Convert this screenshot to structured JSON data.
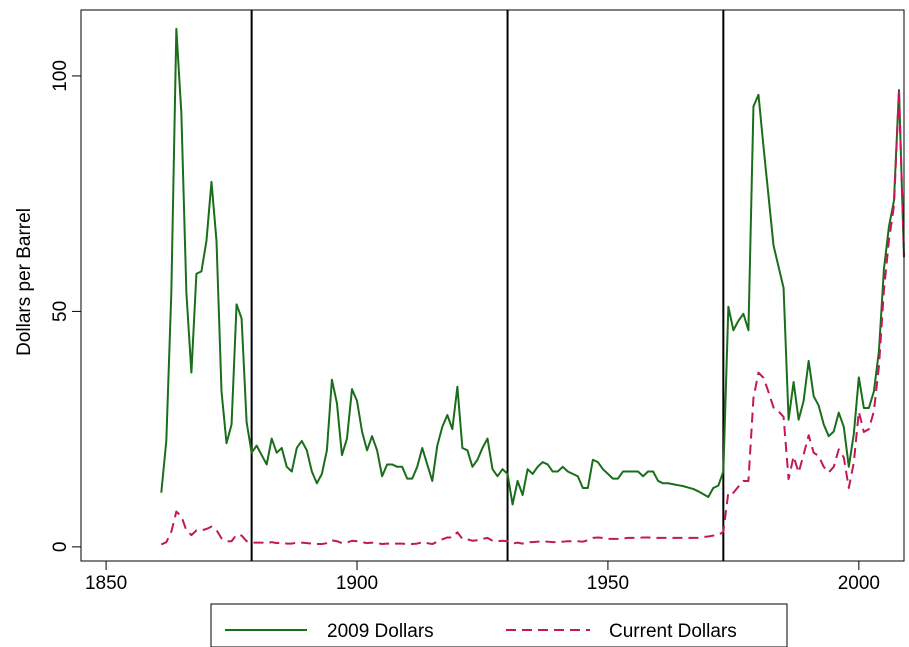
{
  "chart_data": {
    "type": "line",
    "title": "",
    "xlabel": "",
    "ylabel": "Dollars per Barrel",
    "xlim": [
      1845,
      2009
    ],
    "ylim": [
      -3,
      114
    ],
    "xticks": [
      1850,
      1900,
      1950,
      2000
    ],
    "yticks": [
      0,
      50,
      100
    ],
    "grid": false,
    "legend_position": "bottom",
    "vertical_lines": [
      1879,
      1930,
      1973
    ],
    "series": [
      {
        "name": "2009 Dollars",
        "color": "#1a6e1a",
        "dash": "solid",
        "points": [
          [
            1861,
            11.5
          ],
          [
            1862,
            22.5
          ],
          [
            1863,
            54
          ],
          [
            1864,
            110
          ],
          [
            1865,
            92
          ],
          [
            1866,
            54
          ],
          [
            1867,
            37
          ],
          [
            1868,
            58
          ],
          [
            1869,
            58.5
          ],
          [
            1870,
            65
          ],
          [
            1871,
            77.5
          ],
          [
            1872,
            65
          ],
          [
            1873,
            33
          ],
          [
            1874,
            22
          ],
          [
            1875,
            26
          ],
          [
            1876,
            51.5
          ],
          [
            1877,
            48.5
          ],
          [
            1878,
            26.5
          ],
          [
            1879,
            20
          ],
          [
            1880,
            21.5
          ],
          [
            1881,
            19.5
          ],
          [
            1882,
            17.5
          ],
          [
            1883,
            23
          ],
          [
            1884,
            20
          ],
          [
            1885,
            21
          ],
          [
            1886,
            17
          ],
          [
            1887,
            16
          ],
          [
            1888,
            21
          ],
          [
            1889,
            22.5
          ],
          [
            1890,
            20.5
          ],
          [
            1891,
            16
          ],
          [
            1892,
            13.5
          ],
          [
            1893,
            15.5
          ],
          [
            1894,
            20.5
          ],
          [
            1895,
            35.5
          ],
          [
            1896,
            30.5
          ],
          [
            1897,
            19.5
          ],
          [
            1898,
            23
          ],
          [
            1899,
            33.5
          ],
          [
            1900,
            31
          ],
          [
            1901,
            24.5
          ],
          [
            1902,
            20.5
          ],
          [
            1903,
            23.5
          ],
          [
            1904,
            20.5
          ],
          [
            1905,
            15
          ],
          [
            1906,
            17.5
          ],
          [
            1907,
            17.5
          ],
          [
            1908,
            17
          ],
          [
            1909,
            17
          ],
          [
            1910,
            14.5
          ],
          [
            1911,
            14.5
          ],
          [
            1912,
            17
          ],
          [
            1913,
            21
          ],
          [
            1914,
            17.5
          ],
          [
            1915,
            14
          ],
          [
            1916,
            21.5
          ],
          [
            1917,
            25.5
          ],
          [
            1918,
            28
          ],
          [
            1919,
            25
          ],
          [
            1920,
            34
          ],
          [
            1921,
            21
          ],
          [
            1922,
            20.5
          ],
          [
            1923,
            17
          ],
          [
            1924,
            18.5
          ],
          [
            1925,
            21
          ],
          [
            1926,
            23
          ],
          [
            1927,
            16.5
          ],
          [
            1928,
            15
          ],
          [
            1929,
            16.5
          ],
          [
            1930,
            15.5
          ],
          [
            1931,
            9
          ],
          [
            1932,
            14
          ],
          [
            1933,
            11
          ],
          [
            1934,
            16.5
          ],
          [
            1935,
            15.5
          ],
          [
            1936,
            17
          ],
          [
            1937,
            18
          ],
          [
            1938,
            17.5
          ],
          [
            1939,
            16
          ],
          [
            1940,
            16
          ],
          [
            1941,
            17
          ],
          [
            1942,
            16
          ],
          [
            1943,
            15.5
          ],
          [
            1944,
            15
          ],
          [
            1945,
            12.5
          ],
          [
            1946,
            12.5
          ],
          [
            1947,
            18.5
          ],
          [
            1948,
            18
          ],
          [
            1949,
            16.5
          ],
          [
            1950,
            15.5
          ],
          [
            1951,
            14.5
          ],
          [
            1952,
            14.5
          ],
          [
            1953,
            16
          ],
          [
            1954,
            16
          ],
          [
            1955,
            16
          ],
          [
            1956,
            16
          ],
          [
            1957,
            15
          ],
          [
            1958,
            16
          ],
          [
            1959,
            16
          ],
          [
            1960,
            14
          ],
          [
            1961,
            13.5
          ],
          [
            1962,
            13.5
          ],
          [
            1963,
            13.3
          ],
          [
            1964,
            13.1
          ],
          [
            1965,
            12.9
          ],
          [
            1966,
            12.6
          ],
          [
            1967,
            12.3
          ],
          [
            1968,
            11.8
          ],
          [
            1969,
            11.2
          ],
          [
            1970,
            10.6
          ],
          [
            1971,
            12.5
          ],
          [
            1972,
            13
          ],
          [
            1973,
            16
          ],
          [
            1974,
            51
          ],
          [
            1975,
            46
          ],
          [
            1976,
            48
          ],
          [
            1977,
            49.5
          ],
          [
            1978,
            46
          ],
          [
            1979,
            93.5
          ],
          [
            1980,
            96
          ],
          [
            1981,
            85
          ],
          [
            1982,
            74.5
          ],
          [
            1983,
            64
          ],
          [
            1984,
            59.5
          ],
          [
            1985,
            55
          ],
          [
            1986,
            27
          ],
          [
            1987,
            35
          ],
          [
            1988,
            27
          ],
          [
            1989,
            31
          ],
          [
            1990,
            39.5
          ],
          [
            1991,
            32
          ],
          [
            1992,
            30
          ],
          [
            1993,
            26
          ],
          [
            1994,
            23.5
          ],
          [
            1995,
            24.5
          ],
          [
            1996,
            28.5
          ],
          [
            1997,
            25.5
          ],
          [
            1998,
            17
          ],
          [
            1999,
            24
          ],
          [
            2000,
            36
          ],
          [
            2001,
            29.5
          ],
          [
            2002,
            29.5
          ],
          [
            2003,
            33
          ],
          [
            2004,
            41.5
          ],
          [
            2005,
            59
          ],
          [
            2006,
            68
          ],
          [
            2007,
            73.5
          ],
          [
            2008,
            97
          ],
          [
            2009,
            61.5
          ]
        ]
      },
      {
        "name": "Current Dollars",
        "color": "#c2185b",
        "dash": "dashed",
        "points": [
          [
            1861,
            0.5
          ],
          [
            1862,
            1
          ],
          [
            1863,
            3.2
          ],
          [
            1864,
            7.5
          ],
          [
            1865,
            6.5
          ],
          [
            1866,
            3.5
          ],
          [
            1867,
            2.5
          ],
          [
            1868,
            3.5
          ],
          [
            1869,
            3.5
          ],
          [
            1870,
            3.8
          ],
          [
            1871,
            4.3
          ],
          [
            1872,
            3.6
          ],
          [
            1873,
            1.8
          ],
          [
            1874,
            1.2
          ],
          [
            1875,
            1.2
          ],
          [
            1876,
            2.6
          ],
          [
            1877,
            2.4
          ],
          [
            1878,
            1.2
          ],
          [
            1879,
            0.9
          ],
          [
            1880,
            0.9
          ],
          [
            1881,
            0.9
          ],
          [
            1882,
            0.8
          ],
          [
            1883,
            1.0
          ],
          [
            1884,
            0.8
          ],
          [
            1885,
            0.9
          ],
          [
            1886,
            0.7
          ],
          [
            1887,
            0.7
          ],
          [
            1888,
            0.9
          ],
          [
            1889,
            0.9
          ],
          [
            1890,
            0.8
          ],
          [
            1891,
            0.7
          ],
          [
            1892,
            0.6
          ],
          [
            1893,
            0.6
          ],
          [
            1894,
            0.8
          ],
          [
            1895,
            1.4
          ],
          [
            1896,
            1.2
          ],
          [
            1897,
            0.8
          ],
          [
            1898,
            0.9
          ],
          [
            1899,
            1.3
          ],
          [
            1900,
            1.2
          ],
          [
            1901,
            1.0
          ],
          [
            1902,
            0.8
          ],
          [
            1903,
            0.9
          ],
          [
            1904,
            0.8
          ],
          [
            1905,
            0.6
          ],
          [
            1906,
            0.7
          ],
          [
            1907,
            0.7
          ],
          [
            1908,
            0.7
          ],
          [
            1909,
            0.7
          ],
          [
            1910,
            0.6
          ],
          [
            1911,
            0.6
          ],
          [
            1912,
            0.7
          ],
          [
            1913,
            1.0
          ],
          [
            1914,
            0.8
          ],
          [
            1915,
            0.6
          ],
          [
            1916,
            1.1
          ],
          [
            1917,
            1.6
          ],
          [
            1918,
            2.0
          ],
          [
            1919,
            2.0
          ],
          [
            1920,
            3.1
          ],
          [
            1921,
            1.7
          ],
          [
            1922,
            1.6
          ],
          [
            1923,
            1.3
          ],
          [
            1924,
            1.4
          ],
          [
            1925,
            1.7
          ],
          [
            1926,
            1.9
          ],
          [
            1927,
            1.3
          ],
          [
            1928,
            1.2
          ],
          [
            1929,
            1.3
          ],
          [
            1930,
            1.2
          ],
          [
            1931,
            0.7
          ],
          [
            1932,
            0.9
          ],
          [
            1933,
            0.7
          ],
          [
            1934,
            1.0
          ],
          [
            1935,
            1.0
          ],
          [
            1936,
            1.1
          ],
          [
            1937,
            1.2
          ],
          [
            1938,
            1.1
          ],
          [
            1939,
            1.0
          ],
          [
            1940,
            1.0
          ],
          [
            1941,
            1.1
          ],
          [
            1942,
            1.2
          ],
          [
            1943,
            1.2
          ],
          [
            1944,
            1.2
          ],
          [
            1945,
            1.1
          ],
          [
            1946,
            1.4
          ],
          [
            1947,
            1.9
          ],
          [
            1948,
            2.0
          ],
          [
            1949,
            1.9
          ],
          [
            1950,
            1.7
          ],
          [
            1951,
            1.7
          ],
          [
            1952,
            1.7
          ],
          [
            1953,
            1.8
          ],
          [
            1954,
            1.9
          ],
          [
            1955,
            1.9
          ],
          [
            1956,
            1.9
          ],
          [
            1957,
            2.0
          ],
          [
            1958,
            2.0
          ],
          [
            1959,
            1.9
          ],
          [
            1960,
            1.9
          ],
          [
            1961,
            1.9
          ],
          [
            1962,
            1.9
          ],
          [
            1963,
            1.9
          ],
          [
            1964,
            1.9
          ],
          [
            1965,
            1.9
          ],
          [
            1966,
            1.9
          ],
          [
            1967,
            1.9
          ],
          [
            1968,
            1.9
          ],
          [
            1969,
            2.1
          ],
          [
            1970,
            2.2
          ],
          [
            1971,
            2.4
          ],
          [
            1972,
            2.5
          ],
          [
            1973,
            3.2
          ],
          [
            1974,
            11.6
          ],
          [
            1975,
            11.5
          ],
          [
            1976,
            12.8
          ],
          [
            1977,
            14
          ],
          [
            1978,
            14
          ],
          [
            1979,
            31.6
          ],
          [
            1980,
            37
          ],
          [
            1981,
            35.9
          ],
          [
            1982,
            32.9
          ],
          [
            1983,
            29.6
          ],
          [
            1984,
            28.8
          ],
          [
            1985,
            27.6
          ],
          [
            1986,
            14.4
          ],
          [
            1987,
            19.2
          ],
          [
            1988,
            15.8
          ],
          [
            1989,
            19.6
          ],
          [
            1990,
            23.7
          ],
          [
            1991,
            20
          ],
          [
            1992,
            19.3
          ],
          [
            1993,
            17
          ],
          [
            1994,
            15.8
          ],
          [
            1995,
            17
          ],
          [
            1996,
            20.7
          ],
          [
            1997,
            19
          ],
          [
            1998,
            12.5
          ],
          [
            1999,
            17.9
          ],
          [
            2000,
            28.7
          ],
          [
            2001,
            24.4
          ],
          [
            2002,
            25
          ],
          [
            2003,
            28.8
          ],
          [
            2004,
            38.3
          ],
          [
            2005,
            54.5
          ],
          [
            2006,
            65.1
          ],
          [
            2007,
            72.4
          ],
          [
            2008,
            97
          ],
          [
            2009,
            61.7
          ]
        ]
      }
    ]
  }
}
